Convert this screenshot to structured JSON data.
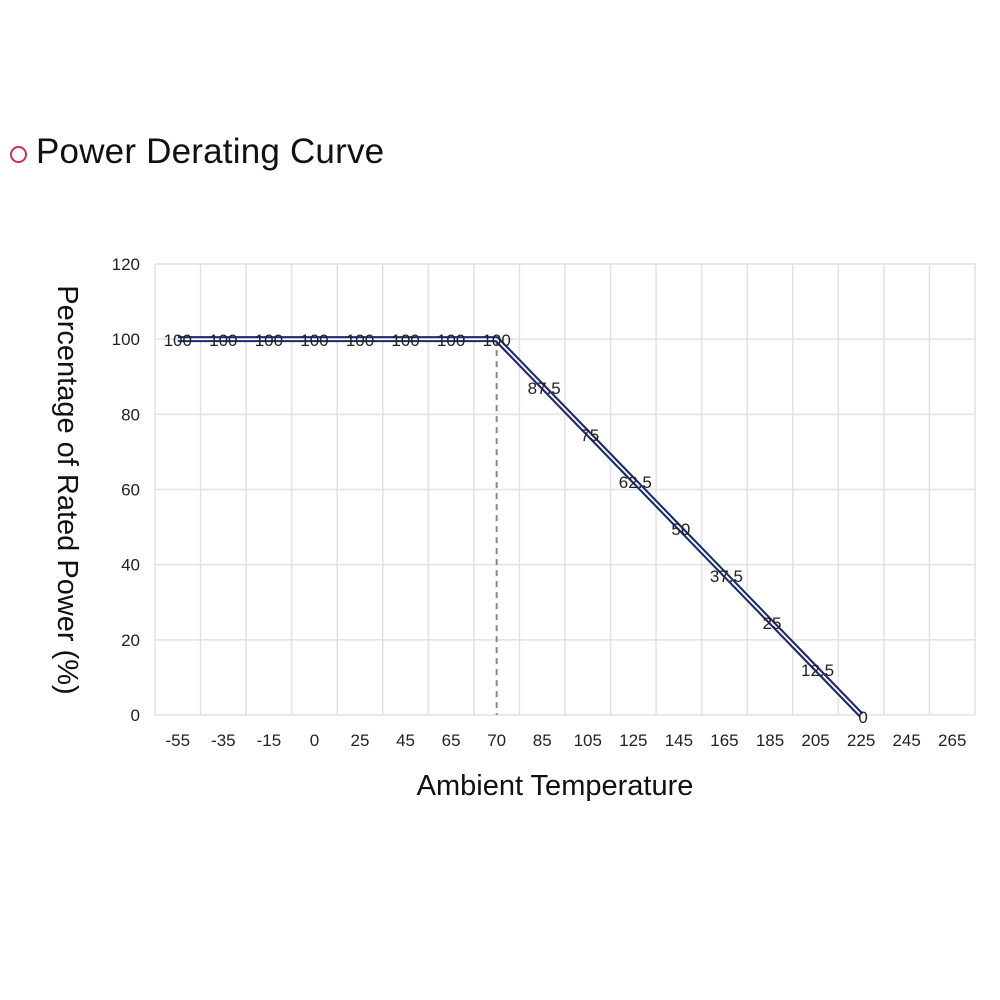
{
  "header": {
    "title": "Power Derating Curve"
  },
  "chart_data": {
    "type": "line",
    "title": "Power Derating Curve",
    "xlabel": "Ambient Temperature",
    "ylabel": "Percentage of Rated Power (%)",
    "categories": [
      "-55",
      "-35",
      "-15",
      "0",
      "25",
      "45",
      "65",
      "70",
      "85",
      "105",
      "125",
      "145",
      "165",
      "185",
      "205",
      "225",
      "245",
      "265"
    ],
    "ylim": [
      0,
      120
    ],
    "yticks": [
      "0",
      "20",
      "40",
      "60",
      "80",
      "100",
      "120"
    ],
    "grid": true,
    "reference_line_at": "70",
    "series": [
      {
        "points": [
          {
            "x": "-55",
            "y": 100,
            "label": "100"
          },
          {
            "x": "-35",
            "y": 100,
            "label": "100"
          },
          {
            "x": "-15",
            "y": 100,
            "label": "100"
          },
          {
            "x": "0",
            "y": 100,
            "label": "100"
          },
          {
            "x": "25",
            "y": 100,
            "label": "100"
          },
          {
            "x": "45",
            "y": 100,
            "label": "100"
          },
          {
            "x": "65",
            "y": 100,
            "label": "100"
          },
          {
            "x": "70",
            "y": 100,
            "label": "100"
          },
          {
            "x": "85",
            "y": 87.5,
            "label": "87.5"
          },
          {
            "x": "105",
            "y": 75,
            "label": "75"
          },
          {
            "x": "125",
            "y": 62.5,
            "label": "62.5"
          },
          {
            "x": "145",
            "y": 50,
            "label": "50"
          },
          {
            "x": "165",
            "y": 37.5,
            "label": "37.5"
          },
          {
            "x": "185",
            "y": 25,
            "label": "25"
          },
          {
            "x": "205",
            "y": 12.5,
            "label": "12.5"
          },
          {
            "x": "225",
            "y": 0,
            "label": "0"
          }
        ],
        "color": "#1a2b6b"
      }
    ]
  }
}
